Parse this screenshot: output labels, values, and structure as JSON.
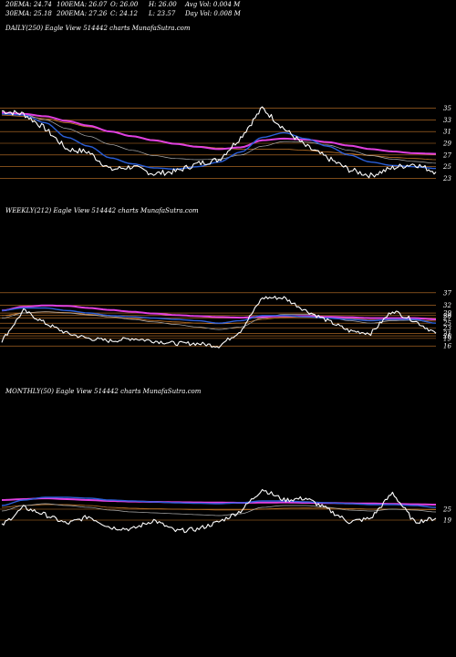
{
  "header": {
    "ema20": "20EMA: 24.74",
    "ema100": "100EMA: 26.07",
    "open": "O: 26.00",
    "high": "H: 26.00",
    "avg_vol": "Avg Vol: 0.004  M",
    "ema30": "30EMA: 25.18",
    "ema200": "200EMA: 27.26",
    "close": "C: 24.12",
    "low": "L: 23.57",
    "day_vol": "Day Vol: 0.008 M"
  },
  "colors": {
    "price": "#ffffff",
    "ema_fast": "#2b5fd9",
    "ema_slow": "#e040e0",
    "ema_mid": "#b0b0b0",
    "ema_long": "#c87828",
    "level_line": "#c8782a"
  },
  "chart_data": [
    {
      "type": "line",
      "title": "DAILY(250) Eagle  View  514442  charts MunafaSutra.com",
      "ticks": [
        35,
        33,
        31,
        29,
        27,
        25,
        23
      ],
      "ylim": [
        22,
        36
      ],
      "x": [
        0,
        5,
        10,
        15,
        20,
        25,
        30,
        35,
        40,
        45,
        50,
        55,
        60,
        65,
        70,
        75,
        80,
        85,
        90,
        95,
        100
      ],
      "series": [
        {
          "name": "price",
          "values": [
            34.5,
            34.0,
            31.5,
            28.0,
            27.5,
            24.5,
            25.0,
            23.8,
            24.2,
            25.5,
            26.2,
            30.0,
            35.0,
            31.5,
            28.5,
            26.5,
            24.5,
            23.5,
            24.8,
            25.5,
            24.1
          ]
        },
        {
          "name": "ema-fast",
          "values": [
            34.0,
            33.8,
            32.5,
            30.0,
            28.5,
            26.5,
            25.5,
            24.8,
            24.6,
            25.0,
            25.8,
            27.5,
            30.0,
            30.8,
            29.8,
            28.5,
            27.0,
            25.8,
            25.2,
            25.0,
            24.7
          ]
        },
        {
          "name": "ema-slow",
          "values": [
            34.2,
            34.0,
            33.6,
            32.8,
            32.0,
            31.0,
            30.2,
            29.5,
            28.9,
            28.4,
            28.0,
            28.3,
            29.5,
            29.8,
            29.6,
            29.2,
            28.6,
            28.0,
            27.6,
            27.3,
            27.2
          ]
        },
        {
          "name": "ema-mid",
          "values": [
            34.3,
            33.9,
            33.0,
            31.5,
            30.2,
            28.8,
            27.8,
            26.9,
            26.4,
            26.2,
            26.3,
            27.0,
            28.5,
            29.3,
            29.2,
            28.7,
            27.8,
            26.9,
            26.3,
            25.9,
            25.6
          ]
        },
        {
          "name": "ema-long",
          "values": [
            33.8,
            33.6,
            33.2,
            32.5,
            31.8,
            31.0,
            30.2,
            29.6,
            29.0,
            28.5,
            28.2,
            28.0,
            28.0,
            28.0,
            27.8,
            27.5,
            27.2,
            26.9,
            26.6,
            26.4,
            26.2
          ]
        }
      ]
    },
    {
      "type": "line",
      "title": "WEEKLY(212) Eagle  View  514442  charts MunafaSutra.com",
      "ticks": [
        37,
        32,
        29,
        28,
        27,
        25,
        23,
        21,
        20,
        19,
        16
      ],
      "ylim": [
        15,
        38
      ],
      "x": [
        0,
        5,
        10,
        15,
        20,
        25,
        30,
        35,
        40,
        45,
        50,
        55,
        60,
        65,
        70,
        75,
        80,
        85,
        90,
        95,
        100
      ],
      "series": [
        {
          "name": "price",
          "values": [
            18,
            30,
            25,
            21,
            19,
            18,
            19,
            18,
            17,
            17,
            16,
            22,
            35,
            35,
            30,
            26,
            22,
            21,
            30,
            26,
            21
          ]
        },
        {
          "name": "ema-fast",
          "values": [
            30,
            31,
            31,
            30,
            29,
            28,
            27.5,
            27,
            26.5,
            26,
            25,
            26,
            28,
            28,
            27.5,
            27,
            26.5,
            26,
            26.5,
            26.5,
            25
          ]
        },
        {
          "name": "ema-slow",
          "values": [
            30,
            31.5,
            32,
            31.8,
            31,
            30.2,
            29.5,
            28.8,
            28.2,
            27.8,
            27.4,
            27.2,
            27.5,
            27.8,
            27.8,
            27.5,
            27.3,
            27,
            27,
            27,
            26.5
          ]
        },
        {
          "name": "ema-mid",
          "values": [
            27,
            29,
            29.5,
            29,
            28.3,
            27.5,
            26.5,
            25.5,
            24.5,
            23.5,
            22.5,
            23.5,
            27,
            28.5,
            28.5,
            27.5,
            26,
            25,
            26,
            26.2,
            25
          ]
        },
        {
          "name": "ema-long",
          "values": [
            28,
            29,
            29.5,
            29.2,
            28.5,
            27.5,
            26.8,
            26,
            25.5,
            25,
            24.8,
            25,
            26.5,
            27.3,
            27.5,
            27.3,
            26.8,
            26.3,
            26.2,
            26.3,
            25.8
          ]
        }
      ]
    },
    {
      "type": "line",
      "title": "MONTHLY(50) Eagle  View  514442  charts MunafaSutra.com",
      "ticks": [
        25,
        19
      ],
      "ylim": [
        10,
        45
      ],
      "x": [
        0,
        5,
        10,
        15,
        20,
        25,
        30,
        35,
        40,
        45,
        50,
        55,
        60,
        65,
        70,
        75,
        80,
        85,
        90,
        95,
        100
      ],
      "series": [
        {
          "name": "price",
          "values": [
            16,
            26,
            22,
            17,
            21,
            15,
            14,
            19,
            13,
            14,
            18,
            24,
            36,
            30,
            31,
            25,
            18,
            20,
            34,
            18,
            20
          ]
        },
        {
          "name": "ema-fast",
          "values": [
            27,
            30,
            31.5,
            31.5,
            31,
            30,
            29.5,
            29,
            28.5,
            28.2,
            28,
            28.5,
            29.5,
            29.5,
            29,
            28.5,
            28,
            27.5,
            27.5,
            27,
            26
          ]
        },
        {
          "name": "ema-slow",
          "values": [
            30,
            30.5,
            31,
            30.5,
            30,
            29.5,
            29.2,
            29,
            28.8,
            28.7,
            28.6,
            28.5,
            28.6,
            28.7,
            28.5,
            28.4,
            28.2,
            28.1,
            27.9,
            27.7,
            27.5
          ]
        },
        {
          "name": "ema-mid",
          "values": [
            24,
            27,
            28,
            27,
            26,
            24.5,
            23.5,
            23,
            22.5,
            22,
            21.5,
            22.5,
            26,
            27,
            27,
            26,
            24.5,
            24,
            25,
            24.5,
            23.5
          ]
        },
        {
          "name": "ema-long",
          "values": [
            26,
            27,
            27.5,
            27.5,
            27,
            26,
            25.5,
            25.2,
            25,
            24.8,
            24.6,
            24.6,
            25,
            25.5,
            25.6,
            25.5,
            25.3,
            25,
            25,
            24.9,
            24.7
          ]
        }
      ]
    }
  ]
}
